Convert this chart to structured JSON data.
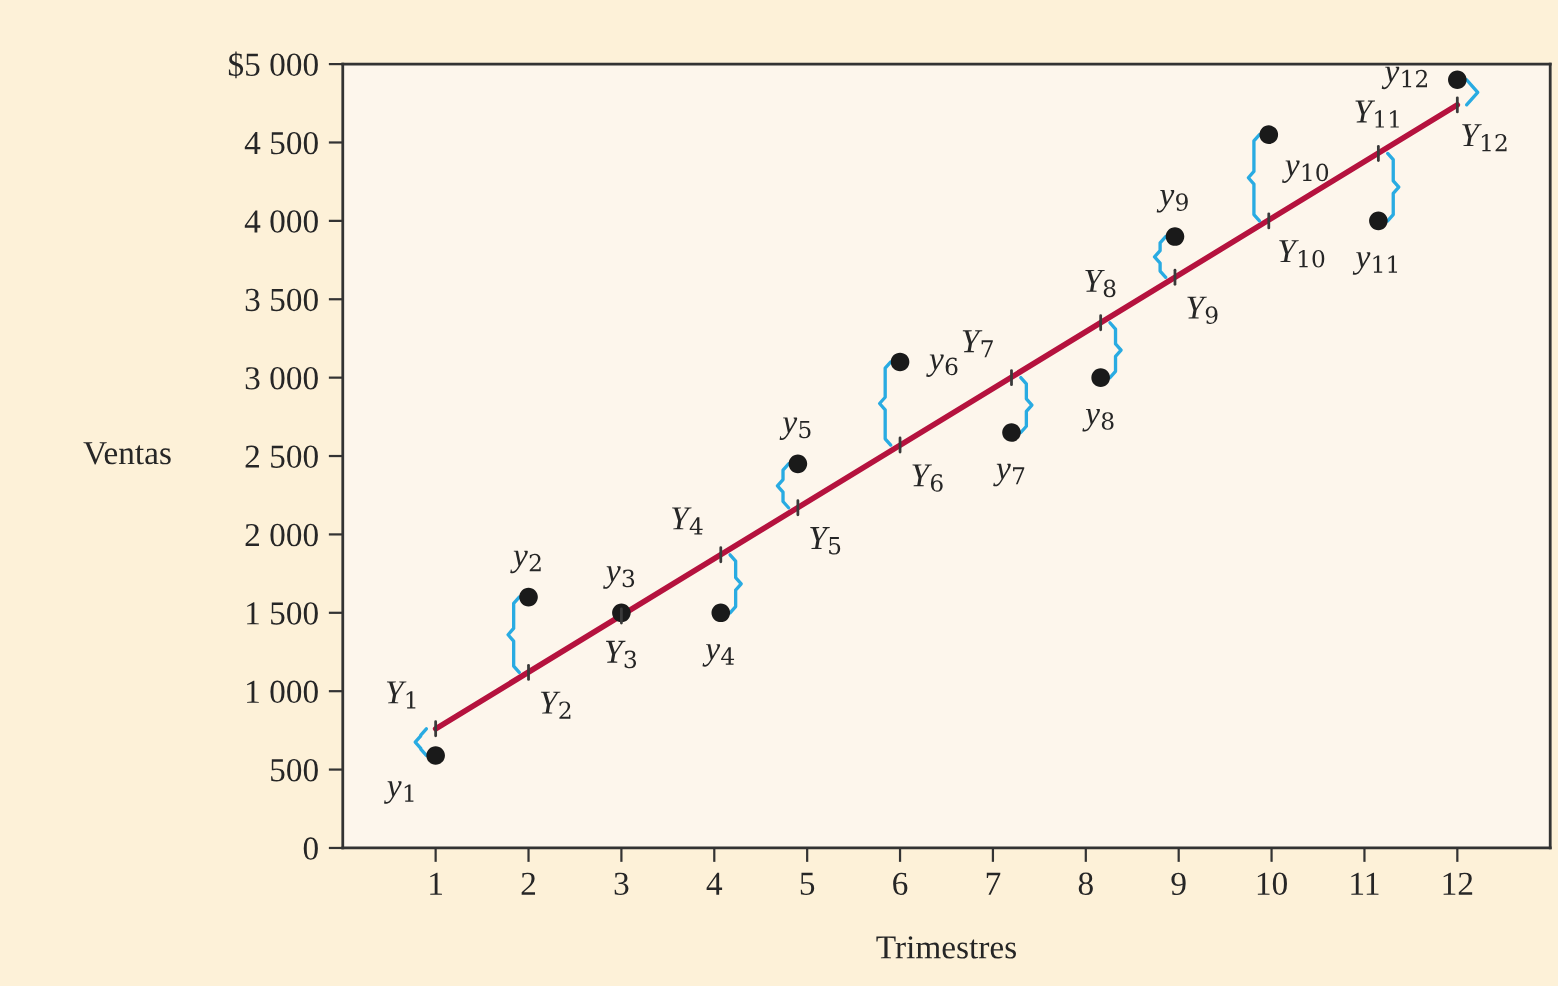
{
  "chart_data": {
    "type": "scatter",
    "xlabel": "Trimestres",
    "ylabel": "Ventas",
    "xlim": [
      0,
      13
    ],
    "xticks": [
      1,
      2,
      3,
      4,
      5,
      6,
      7,
      8,
      9,
      10,
      11,
      12
    ],
    "ylim": [
      0,
      5000
    ],
    "yticks": [
      0,
      500,
      {
        "value": 1000,
        "label": "1 000"
      },
      {
        "value": 1500,
        "label": "1 500"
      },
      {
        "value": 2000,
        "label": "2 000"
      },
      {
        "value": 2500,
        "label": "2 500"
      },
      {
        "value": 3000,
        "label": "3 000"
      },
      {
        "value": 3500,
        "label": "3 500"
      },
      {
        "value": 4000,
        "label": "4 000"
      },
      {
        "value": 4500,
        "label": "4 500"
      },
      {
        "value": 5000,
        "label": "$5 000"
      }
    ],
    "grid": false,
    "legend": false,
    "series": [
      {
        "color": "#1a1a1a",
        "marker": "circle",
        "x": [
          1,
          2,
          3,
          4.07,
          4.9,
          6,
          7.2,
          8.16,
          8.96,
          9.97,
          11.15,
          12
        ],
        "values": [
          590,
          1600,
          1500,
          1500,
          2450,
          3100,
          2650,
          3000,
          3900,
          4550,
          4000,
          4900
        ]
      },
      {
        "type": "line",
        "color": "#b5123e",
        "line_style": "solid",
        "marker": "none",
        "x": [
          1,
          12
        ],
        "values": [
          760,
          4740
        ]
      }
    ],
    "annotations": [
      {
        "text": "y$_{1}$",
        "x": 1,
        "y": 590
      },
      {
        "text": "y$_{2}$",
        "x": 2,
        "y": 1600
      },
      {
        "text": "y$_{3}$",
        "x": 3,
        "y": 1500
      },
      {
        "text": "y$_{4}$",
        "x": 4.07,
        "y": 1500
      },
      {
        "text": "y$_{5}$",
        "x": 4.9,
        "y": 2450
      },
      {
        "text": "y$_{6}$",
        "x": 6,
        "y": 3100
      },
      {
        "text": "y$_{7}$",
        "x": 7.2,
        "y": 2650
      },
      {
        "text": "y$_{8}$",
        "x": 8.16,
        "y": 3000
      },
      {
        "text": "y$_{9}$",
        "x": 8.96,
        "y": 3900
      },
      {
        "text": "y$_{10}$",
        "x": 9.97,
        "y": 4550
      },
      {
        "text": "y$_{11}$",
        "x": 11.15,
        "y": 4000
      },
      {
        "text": "y$_{12}$",
        "x": 12,
        "y": 4900
      },
      {
        "text": "Y$_{1}$",
        "x": 1,
        "y": 760
      },
      {
        "text": "Y$_{2}$",
        "x": 2,
        "y": 1120
      },
      {
        "text": "Y$_{3}$",
        "x": 3,
        "y": 1480
      },
      {
        "text": "Y$_{4}$",
        "x": 4.07,
        "y": 1870
      },
      {
        "text": "Y$_{5}$",
        "x": 4.9,
        "y": 2170
      },
      {
        "text": "Y$_{6}$",
        "x": 6,
        "y": 2570
      },
      {
        "text": "Y$_{7}$",
        "x": 7.2,
        "y": 3000
      },
      {
        "text": "Y$_{8}$",
        "x": 8.16,
        "y": 3350
      },
      {
        "text": "Y$_{9}$",
        "x": 8.96,
        "y": 3640
      },
      {
        "text": "Y$_{10}$",
        "x": 9.97,
        "y": 4000
      },
      {
        "text": "Y$_{11}$",
        "x": 11.15,
        "y": 4430
      },
      {
        "text": "Y$_{12}$",
        "x": 12,
        "y": 4740
      }
    ]
  }
}
